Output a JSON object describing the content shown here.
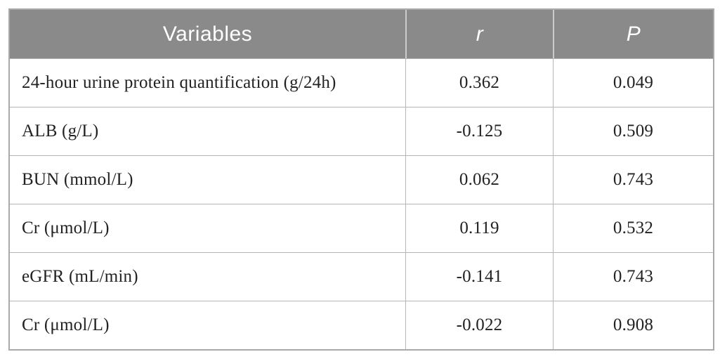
{
  "table": {
    "columns": [
      {
        "label": "Variables",
        "italic": false
      },
      {
        "label": "r",
        "italic": true
      },
      {
        "label": "P",
        "italic": true
      }
    ],
    "rows": [
      {
        "variable": "24-hour urine protein quantification (g/24h)",
        "r": "0.362",
        "p": "0.049"
      },
      {
        "variable": "ALB (g/L)",
        "r": "-0.125",
        "p": "0.509"
      },
      {
        "variable": "BUN (mmol/L)",
        "r": "0.062",
        "p": "0.743"
      },
      {
        "variable": "Cr (μmol/L)",
        "r": "0.119",
        "p": "0.532"
      },
      {
        "variable": "eGFR (mL/min)",
        "r": "-0.141",
        "p": "0.743"
      },
      {
        "variable": "Cr (μmol/L)",
        "r": "-0.022",
        "p": "0.908"
      }
    ],
    "colors": {
      "header_bg": "#8a8a8a",
      "header_text": "#ffffff",
      "body_text": "#222222",
      "grid_line": "#b5b5b5",
      "outer_border": "#a9a9a9",
      "header_divider": "#cccccc"
    }
  }
}
